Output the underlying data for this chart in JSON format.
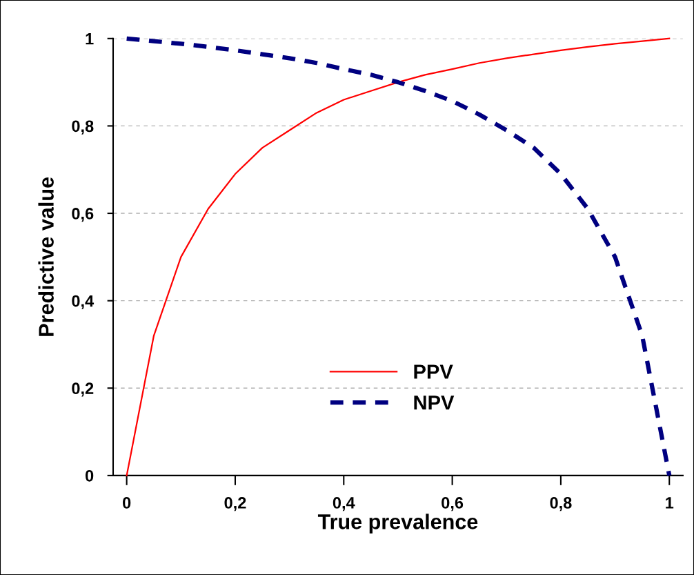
{
  "chart_data": {
    "type": "line",
    "xlabel": "True prevalence",
    "ylabel": "Predictive value",
    "x": [
      0,
      0.05,
      0.1,
      0.15,
      0.2,
      0.25,
      0.3,
      0.35,
      0.4,
      0.45,
      0.5,
      0.55,
      0.6,
      0.65,
      0.7,
      0.75,
      0.8,
      0.85,
      0.9,
      0.95,
      1
    ],
    "series": [
      {
        "name": "PPV",
        "color": "#ff0000",
        "line_style": "solid",
        "values": [
          0,
          0.32,
          0.5,
          0.61,
          0.69,
          0.75,
          0.79,
          0.83,
          0.86,
          0.88,
          0.9,
          0.917,
          0.93,
          0.944,
          0.955,
          0.964,
          0.973,
          0.981,
          0.988,
          0.994,
          1
        ]
      },
      {
        "name": "NPV",
        "color": "#000080",
        "line_style": "dashed",
        "values": [
          1,
          0.994,
          0.988,
          0.981,
          0.973,
          0.964,
          0.955,
          0.944,
          0.93,
          0.917,
          0.9,
          0.88,
          0.857,
          0.826,
          0.79,
          0.75,
          0.69,
          0.61,
          0.5,
          0.32,
          0
        ]
      }
    ],
    "xlim": [
      -0.025,
      1.025
    ],
    "ylim": [
      0,
      1
    ],
    "xticks": [
      {
        "value": 0,
        "label": "0"
      },
      {
        "value": 0.2,
        "label": "0,2"
      },
      {
        "value": 0.4,
        "label": "0,4"
      },
      {
        "value": 0.6,
        "label": "0,6"
      },
      {
        "value": 0.8,
        "label": "0,8"
      },
      {
        "value": 1,
        "label": "1"
      }
    ],
    "yticks": [
      0,
      {
        "value": 0.2,
        "label": "0,2"
      },
      {
        "value": 0.4,
        "label": "0,4"
      },
      {
        "value": 0.6,
        "label": "0,6"
      },
      {
        "value": 0.8,
        "label": "0,8"
      },
      1
    ],
    "grid": "y",
    "legend": "bottom",
    "marker": "none"
  }
}
